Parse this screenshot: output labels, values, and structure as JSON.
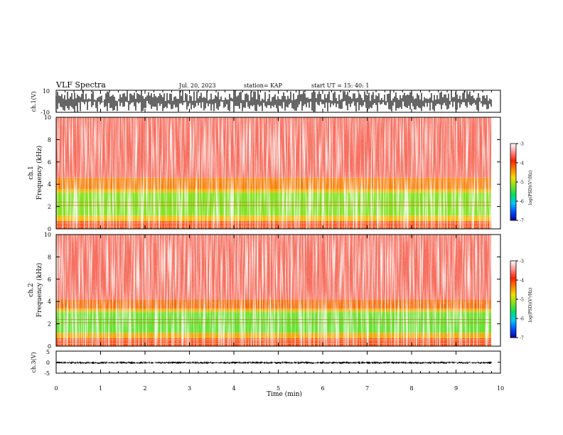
{
  "header": {
    "title": "VLF Spectra",
    "date": "Jul. 20, 2023",
    "station": "station= KAP",
    "start": "start UT =  15: 40: 1"
  },
  "colorbar": {
    "label": "log(PSD)(V²/Hz)",
    "ticks": [
      "-3",
      "-4",
      "-5",
      "-6",
      "-7"
    ],
    "range": [
      -7,
      -3
    ],
    "colors": [
      "#0a00a0",
      "#0050ff",
      "#00c8ff",
      "#00e060",
      "#80e020",
      "#f0e000",
      "#ff8000",
      "#ff2000",
      "#ff9090",
      "#ffffff"
    ]
  },
  "chart_data": [
    {
      "type": "line",
      "name": "ch1-waveform",
      "ylabel": "ch.1(V)",
      "ylim": [
        -10,
        10
      ],
      "yticks": [
        "10",
        "-10"
      ],
      "xlim": [
        0,
        9.8
      ],
      "x": [
        0,
        0.5,
        1.0,
        1.5,
        2.0,
        2.5,
        3.0,
        3.5,
        4.0,
        4.5,
        5.0,
        5.5,
        6.0,
        6.5,
        7.0,
        7.5,
        8.0,
        8.5,
        9.0,
        9.5,
        9.8
      ],
      "y_min": [
        -10,
        -10,
        -9,
        -10,
        -9,
        -10,
        -9,
        -10,
        -9,
        -10,
        -10,
        -9,
        -10,
        -9,
        -10,
        -10,
        -9,
        -10,
        -9,
        -10,
        -9
      ],
      "y_max": [
        9,
        10,
        9,
        10,
        10,
        9,
        10,
        9,
        10,
        10,
        9,
        10,
        9,
        10,
        9,
        10,
        10,
        9,
        10,
        9,
        10
      ]
    },
    {
      "type": "heatmap",
      "name": "ch1-spectrogram",
      "ylabel": "ch.1\nFrequency (kHz)",
      "ylim": [
        0,
        10
      ],
      "yticks": [
        "0",
        "2",
        "4",
        "6",
        "8",
        "10"
      ],
      "xlim": [
        0,
        9.8
      ],
      "band_log_psd": [
        {
          "f": [
            0,
            0.7
          ],
          "log_psd": -4.0
        },
        {
          "f": [
            0.7,
            1.2
          ],
          "log_psd": -4.6
        },
        {
          "f": [
            1.2,
            3.4
          ],
          "log_psd": -5.2
        },
        {
          "f": [
            3.4,
            4.6
          ],
          "log_psd": -4.3
        },
        {
          "f": [
            4.6,
            10
          ],
          "log_psd": -3.6
        }
      ]
    },
    {
      "type": "heatmap",
      "name": "ch2-spectrogram",
      "ylabel": "ch.2\nFrequency (kHz)",
      "ylim": [
        0,
        10
      ],
      "yticks": [
        "0",
        "2",
        "4",
        "6",
        "8",
        "10"
      ],
      "xlim": [
        0,
        9.8
      ],
      "band_log_psd": [
        {
          "f": [
            0,
            0.7
          ],
          "log_psd": -4.0
        },
        {
          "f": [
            0.7,
            1.2
          ],
          "log_psd": -4.5
        },
        {
          "f": [
            1.2,
            3.2
          ],
          "log_psd": -5.3
        },
        {
          "f": [
            3.2,
            4.2
          ],
          "log_psd": -4.2
        },
        {
          "f": [
            4.2,
            10
          ],
          "log_psd": -3.6
        }
      ]
    },
    {
      "type": "line",
      "name": "ch3-waveform",
      "ylabel": "ch.3(V)",
      "ylim": [
        -5,
        5
      ],
      "yticks": [
        "5",
        "0",
        "-5"
      ],
      "xlim": [
        0,
        9.8
      ],
      "x": [
        0,
        9.8
      ],
      "y_min": [
        -0.8,
        -0.8
      ],
      "y_max": [
        0.3,
        0.3
      ]
    }
  ],
  "xaxis": {
    "label": "Time (min)",
    "range": [
      0,
      10
    ],
    "ticks": [
      "0",
      "1",
      "2",
      "3",
      "4",
      "5",
      "6",
      "7",
      "8",
      "9",
      "10"
    ]
  }
}
